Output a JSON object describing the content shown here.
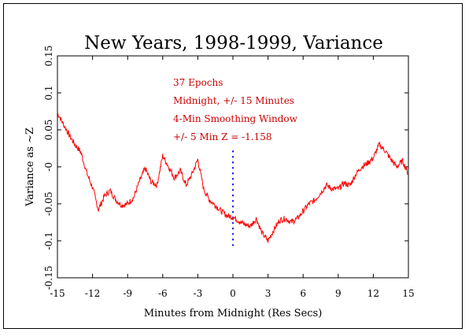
{
  "chart_data": {
    "type": "line",
    "title": "New Years, 1998-1999, Variance",
    "xlabel": "Minutes from Midnight (Res Secs)",
    "ylabel": "Variance as ~Z",
    "xlim": [
      -15,
      15
    ],
    "ylim": [
      -0.15,
      0.15
    ],
    "x_ticks": [
      "-15",
      "-12",
      "-9",
      "-6",
      "-3",
      "0",
      "3",
      "6",
      "9",
      "12",
      "15"
    ],
    "y_ticks": [
      "-0.15",
      "-0.1",
      "-0.05",
      "-0",
      "0.05",
      "0.1",
      "0.15"
    ],
    "grid": false,
    "annotations": [
      "37 Epochs",
      "Midnight, +/- 15 Minutes",
      "4-Min Smoothing Window",
      "+/- 5 Min Z = -1.158"
    ],
    "colors": {
      "line": "#ff0000",
      "marker_line": "#0000ff",
      "annotation": "#cc0000"
    },
    "series": [
      {
        "x": [
          -15,
          -14.5,
          -14,
          -13.5,
          -13,
          -12.5,
          -12,
          -11.5,
          -11,
          -10.5,
          -10,
          -9.5,
          -9,
          -8.5,
          -8,
          -7.5,
          -7,
          -6.5,
          -6,
          -5.5,
          -5,
          -4.5,
          -4,
          -3.5,
          -3,
          -2.5,
          -2,
          -1.5,
          -1,
          -0.5,
          0,
          0.5,
          1,
          1.5,
          2,
          2.5,
          3,
          3.5,
          4,
          4.5,
          5,
          5.5,
          6,
          6.5,
          7,
          7.5,
          8,
          8.5,
          9,
          9.5,
          10,
          10.5,
          11,
          11.5,
          12,
          12.5,
          13,
          13.5,
          14,
          14.5,
          15
        ],
        "y": [
          0.073,
          0.058,
          0.043,
          0.03,
          0.02,
          -0.008,
          -0.028,
          -0.058,
          -0.04,
          -0.032,
          -0.045,
          -0.052,
          -0.05,
          -0.042,
          -0.02,
          -0.002,
          -0.02,
          -0.025,
          0.015,
          0.0,
          -0.015,
          -0.005,
          -0.025,
          -0.01,
          0.01,
          -0.03,
          -0.045,
          -0.052,
          -0.06,
          -0.066,
          -0.068,
          -0.073,
          -0.078,
          -0.08,
          -0.07,
          -0.09,
          -0.1,
          -0.085,
          -0.072,
          -0.07,
          -0.075,
          -0.07,
          -0.06,
          -0.05,
          -0.045,
          -0.035,
          -0.025,
          -0.03,
          -0.03,
          -0.022,
          -0.025,
          -0.01,
          0.0,
          0.005,
          0.012,
          0.03,
          0.022,
          0.01,
          0.0,
          0.008,
          -0.01
        ]
      }
    ],
    "vertical_marker": {
      "x": 0,
      "y_from": -0.108,
      "y_to": 0.022
    }
  }
}
